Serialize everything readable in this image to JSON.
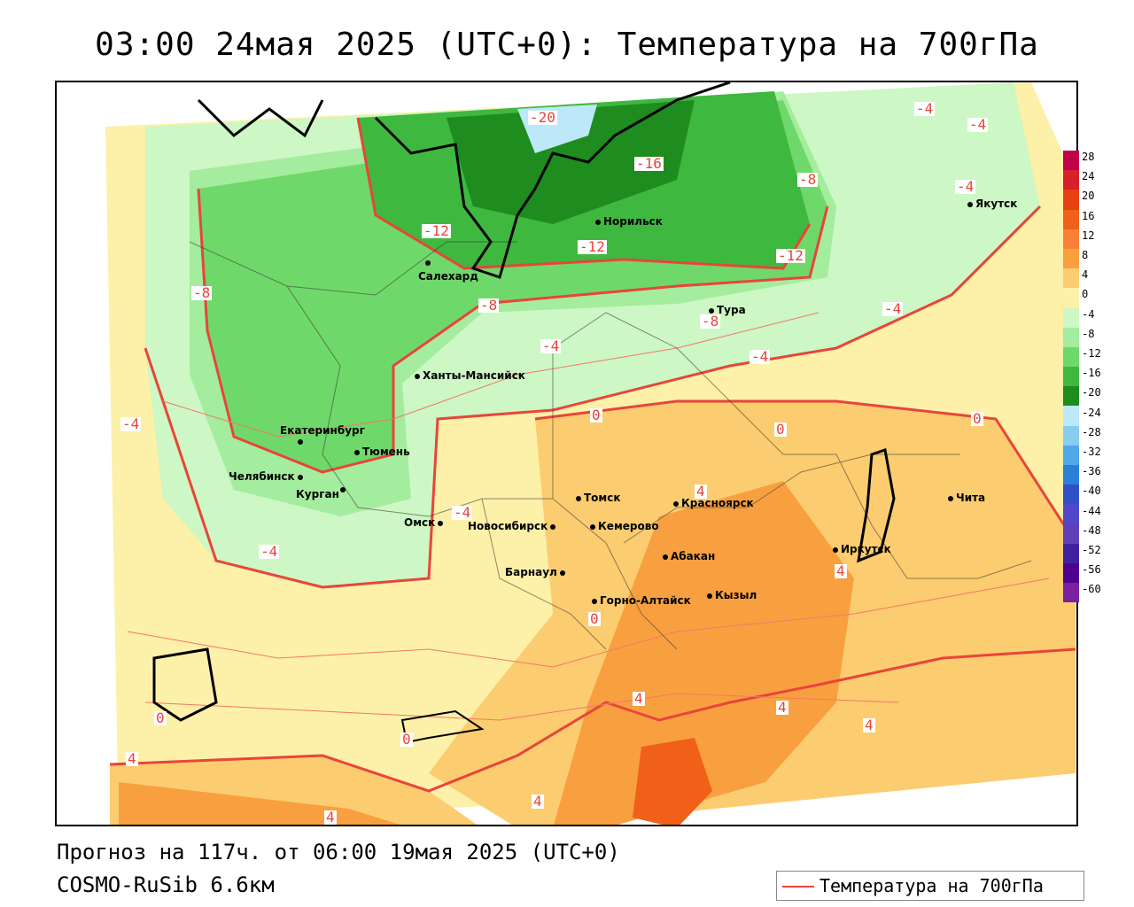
{
  "title": "03:00 24мая 2025 (UTC+0): Температура на 700гПа",
  "forecast_line": "Прогноз на 117ч. от 06:00 19мая 2025 (UTC+0)",
  "model_line": "COSMO-RuSib 6.6км",
  "legend": {
    "label": "Температура на 700гПа",
    "line_color": "#e8453a"
  },
  "color_scale": {
    "labels": [
      "28",
      "24",
      "20",
      "16",
      "12",
      "8",
      "4",
      "0",
      "-4",
      "-8",
      "-12",
      "-16",
      "-20",
      "-24",
      "-28",
      "-32",
      "-36",
      "-40",
      "-44",
      "-48",
      "-52",
      "-56",
      "-60"
    ],
    "colors": [
      "#c0004a",
      "#d8202a",
      "#e84010",
      "#f06018",
      "#f88038",
      "#f8a040",
      "#fccc70",
      "#fdf0a8",
      "#cdf7c5",
      "#a4ec9e",
      "#6fd86a",
      "#3fb83f",
      "#1e8c1e",
      "#bde8f8",
      "#88cdf0",
      "#50a8e8",
      "#2a80d8",
      "#3050c8",
      "#5048c8",
      "#6040b8",
      "#4020a0",
      "#500090",
      "#7a20a0"
    ]
  },
  "cities": [
    {
      "name": "Норильск"
    },
    {
      "name": "Якутск"
    },
    {
      "name": "Салехард"
    },
    {
      "name": "Тура"
    },
    {
      "name": "Ханты-Мансийск"
    },
    {
      "name": "Екатеринбург"
    },
    {
      "name": "Тюмень"
    },
    {
      "name": "Челябинск"
    },
    {
      "name": "Курган"
    },
    {
      "name": "Омск"
    },
    {
      "name": "Новосибирск"
    },
    {
      "name": "Томск"
    },
    {
      "name": "Красноярск"
    },
    {
      "name": "Кемерово"
    },
    {
      "name": "Абакан"
    },
    {
      "name": "Барнаул"
    },
    {
      "name": "Горно-Алтайск"
    },
    {
      "name": "Кызыл"
    },
    {
      "name": "Иркутск"
    },
    {
      "name": "Чита"
    }
  ],
  "contour_labels": [
    "-20",
    "-16",
    "-12",
    "-12",
    "-12",
    "-8",
    "-8",
    "-8",
    "-8",
    "-4",
    "-4",
    "-4",
    "-4",
    "-4",
    "-4",
    "-4",
    "-4",
    "-4",
    "0",
    "0",
    "0",
    "0",
    "0",
    "0",
    "4",
    "4",
    "4",
    "4",
    "4",
    "4",
    "4",
    "4"
  ]
}
